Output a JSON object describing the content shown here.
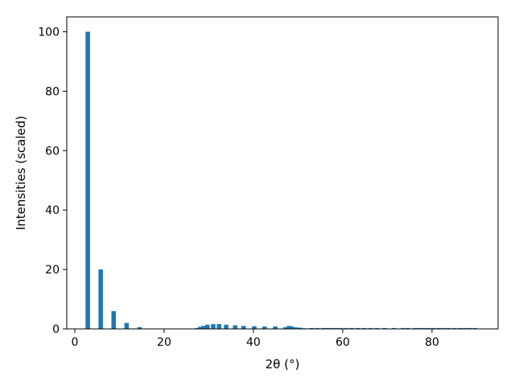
{
  "chart_data": {
    "type": "bar",
    "xlabel": "2θ (°)",
    "ylabel": "Intensities (scaled)",
    "xlim": [
      -1.8,
      94.8
    ],
    "ylim": [
      0,
      105
    ],
    "xticks": [
      0,
      20,
      40,
      60,
      80
    ],
    "yticks": [
      0,
      20,
      40,
      60,
      80,
      100
    ],
    "grid": false,
    "bar_color": "#1f77b4",
    "bar_width": 1.0,
    "x": [
      2.9,
      5.8,
      8.7,
      11.6,
      14.5,
      27.4,
      28.1,
      28.8,
      29.7,
      31.0,
      32.3,
      33.9,
      35.9,
      37.8,
      40.2,
      42.5,
      44.9,
      47.2,
      48.0,
      48.6,
      49.5,
      50.5,
      51.5,
      53.0,
      54.3,
      55.6,
      56.5,
      57.5,
      58.5,
      59.5,
      60.7,
      62.0,
      63.4,
      64.8,
      66.2,
      67.6,
      69.4,
      71.5,
      73.5,
      74.6,
      76.2,
      77.2,
      78.2,
      79.2,
      80.3,
      81.5,
      82.6,
      83.7,
      85.0,
      86.3,
      87.4,
      88.4,
      89.6
    ],
    "values": [
      100,
      20,
      6,
      2,
      0.6,
      0.3,
      0.7,
      1.0,
      1.4,
      1.6,
      1.6,
      1.4,
      1.2,
      1.0,
      0.9,
      0.8,
      0.8,
      0.6,
      1.0,
      0.8,
      0.5,
      0.4,
      0.2,
      0.3,
      0.3,
      0.3,
      0.3,
      0.3,
      0.3,
      0.3,
      0.3,
      0.3,
      0.3,
      0.3,
      0.3,
      0.3,
      0.3,
      0.3,
      0.3,
      0.3,
      0.3,
      0.3,
      0.3,
      0.3,
      0.3,
      0.3,
      0.3,
      0.3,
      0.3,
      0.3,
      0.3,
      0.3,
      0.3
    ]
  }
}
